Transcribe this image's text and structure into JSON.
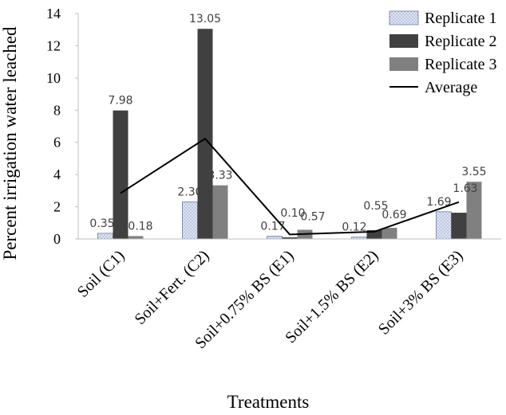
{
  "chart_data": {
    "type": "bar",
    "xlabel": "Treatments",
    "ylabel": "Percent irrigation water leached",
    "ylim": [
      0,
      14
    ],
    "yticks": [
      0,
      2,
      4,
      6,
      8,
      10,
      12,
      14
    ],
    "categories": [
      "Soil (C1)",
      "Soil+Fert. (C2)",
      "Soil+0.75% BS (E1)",
      "Soil+1.5% BS (E2)",
      "Soil+3% BS (E3)"
    ],
    "series": [
      {
        "name": "Replicate 1",
        "kind": "bar",
        "values": [
          0.35,
          2.3,
          0.17,
          0.12,
          1.69
        ],
        "labels": [
          "0.35",
          "2.30",
          "0.17",
          "0.12",
          "1.69"
        ],
        "color": "#dfe5f3",
        "pattern": "dotted"
      },
      {
        "name": "Replicate 2",
        "kind": "bar",
        "values": [
          7.98,
          13.05,
          0.1,
          0.55,
          1.63
        ],
        "labels": [
          "7.98",
          "13.05",
          "0.10",
          "0.55",
          "1.63"
        ],
        "color": "#404040"
      },
      {
        "name": "Replicate 3",
        "kind": "bar",
        "values": [
          0.18,
          3.33,
          0.57,
          0.69,
          3.55
        ],
        "labels": [
          "0.18",
          "3.33",
          "0.57",
          "0.69",
          "3.55"
        ],
        "color": "#808080"
      },
      {
        "name": "Average",
        "kind": "line",
        "values": [
          2.84,
          6.23,
          0.28,
          0.45,
          2.29
        ],
        "color": "#000000"
      }
    ],
    "legend_position": "top-right",
    "grid": false
  }
}
